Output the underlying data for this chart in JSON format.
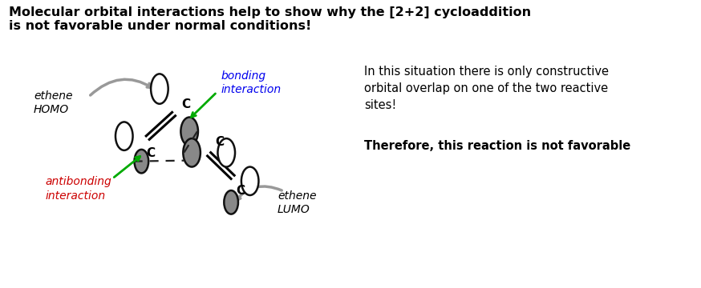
{
  "title_line1": "Molecular orbital interactions help to show why the [2+2] cycloaddition",
  "title_line2": "is not favorable under normal conditions!",
  "title_fontsize": 11.5,
  "right_text": "In this situation there is only constructive\norbital overlap on one of the two reactive\nsites!",
  "right_text_bold": "Therefore, this reaction is not favorable",
  "bonding_label": "bonding\ninteraction",
  "bonding_color": "#0000EE",
  "antibonding_label": "antibonding\ninteraction",
  "antibonding_color": "#CC0000",
  "ethene_homo_label": "ethene\nHOMO",
  "ethene_lumo_label": "ethene\nLUMO",
  "bg_color": "#FFFFFF",
  "text_color": "#000000",
  "orbital_gray": "#888888",
  "orbital_white": "#FFFFFF",
  "dashed_color": "#000000",
  "arrow_color": "#999999",
  "green_color": "#00AA00"
}
